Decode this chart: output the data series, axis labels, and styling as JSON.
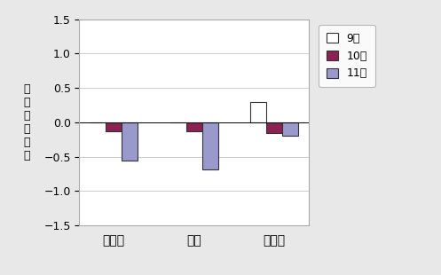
{
  "categories": [
    "三重県",
    "津市",
    "松阪市"
  ],
  "series": {
    "9月": [
      0.0,
      0.0,
      0.3
    ],
    "10月": [
      -0.13,
      -0.13,
      -0.15
    ],
    "11月": [
      -0.55,
      -0.68,
      -0.2
    ]
  },
  "colors": {
    "9月": "#ffffff",
    "10月": "#8B2252",
    "11月": "#9999CC"
  },
  "edgecolors": {
    "9月": "#333333",
    "10月": "#333333",
    "11月": "#333333"
  },
  "ylabel": "対\n前\n月\n上\n昇\n率",
  "ylim": [
    -1.5,
    1.5
  ],
  "yticks": [
    -1.5,
    -1.0,
    -0.5,
    0.0,
    0.5,
    1.0,
    1.5
  ],
  "legend_labels": [
    "9月",
    "10月",
    "11月"
  ],
  "background_color": "#e8e8e8",
  "plot_background": "#ffffff",
  "bar_width": 0.2,
  "grid_color": "#cccccc"
}
